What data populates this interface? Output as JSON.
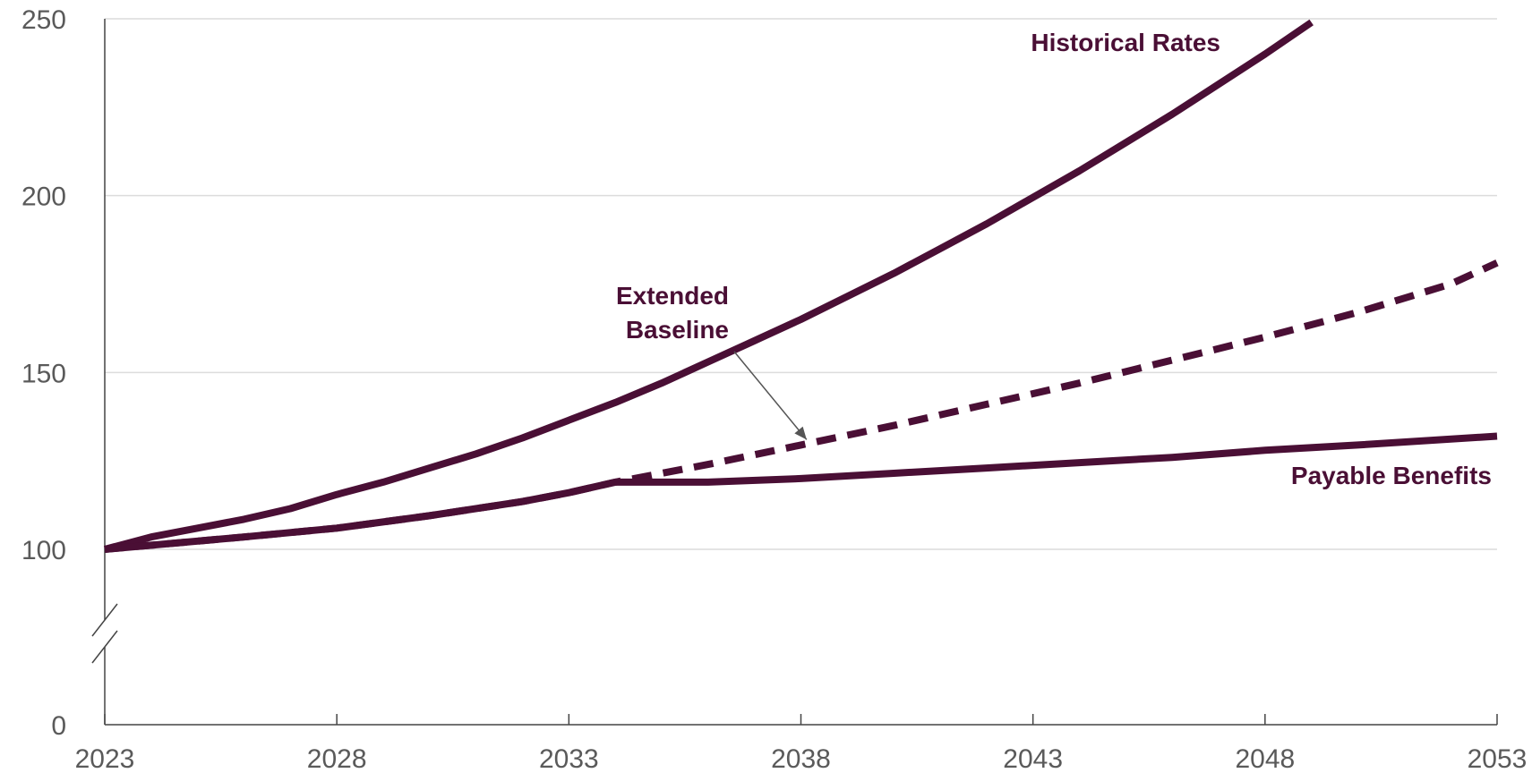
{
  "chart_data": {
    "type": "line",
    "title": "",
    "xlabel": "",
    "ylabel": "",
    "xlim": [
      2023,
      2053
    ],
    "ylim": [
      0,
      250
    ],
    "axis_break": "between 0 and 100 on y-axis",
    "grid": "horizontal",
    "x_ticks": [
      "2023",
      "2028",
      "2033",
      "2038",
      "2043",
      "2048",
      "2053"
    ],
    "y_ticks": [
      "0",
      "100",
      "150",
      "200",
      "250"
    ],
    "colors": {
      "series": "#4a0f35",
      "grid": "#dcdcdc",
      "axis": "#444444",
      "ticks": "#5a5a5a",
      "annotation_arrow": "#555555"
    },
    "series": [
      {
        "name": "Historical Rates",
        "style": "solid",
        "x": [
          2023,
          2024,
          2025,
          2026,
          2027,
          2028,
          2029,
          2030,
          2031,
          2032,
          2033,
          2034,
          2035,
          2036,
          2037,
          2038,
          2039,
          2040,
          2041,
          2042,
          2043,
          2044,
          2045,
          2046,
          2047,
          2048,
          2049
        ],
        "values": [
          100,
          103.5,
          106,
          108.5,
          111.5,
          115.5,
          119,
          123,
          127,
          131.5,
          136.5,
          141.5,
          147,
          153,
          159,
          165,
          171.5,
          178,
          185,
          192,
          199.5,
          207,
          215,
          223,
          231.5,
          240,
          249
        ]
      },
      {
        "name": "Extended Baseline",
        "style": "dashed",
        "x": [
          2023,
          2026,
          2028,
          2030,
          2032,
          2033,
          2034,
          2036,
          2038,
          2040,
          2042,
          2044,
          2046,
          2048,
          2050,
          2052,
          2053
        ],
        "values": [
          100,
          103.5,
          106,
          109.5,
          113.5,
          116,
          119,
          124,
          129.5,
          135,
          141,
          147,
          153.5,
          160,
          167,
          175,
          181
        ]
      },
      {
        "name": "Payable Benefits",
        "style": "solid",
        "x": [
          2023,
          2026,
          2028,
          2030,
          2032,
          2033,
          2034,
          2036,
          2038,
          2040,
          2042,
          2044,
          2046,
          2048,
          2050,
          2053
        ],
        "values": [
          100,
          103.5,
          106,
          109.5,
          113.5,
          116,
          119,
          119,
          120,
          121.5,
          123,
          124.5,
          126,
          128,
          129.5,
          132
        ]
      }
    ],
    "annotations": [
      {
        "text": "Historical Rates",
        "series": "Historical Rates"
      },
      {
        "text": "Extended\nBaseline",
        "series": "Extended Baseline",
        "arrow_to": {
          "x": 2038.2,
          "y": 130
        }
      },
      {
        "text": "Payable Benefits",
        "series": "Payable Benefits"
      }
    ]
  }
}
